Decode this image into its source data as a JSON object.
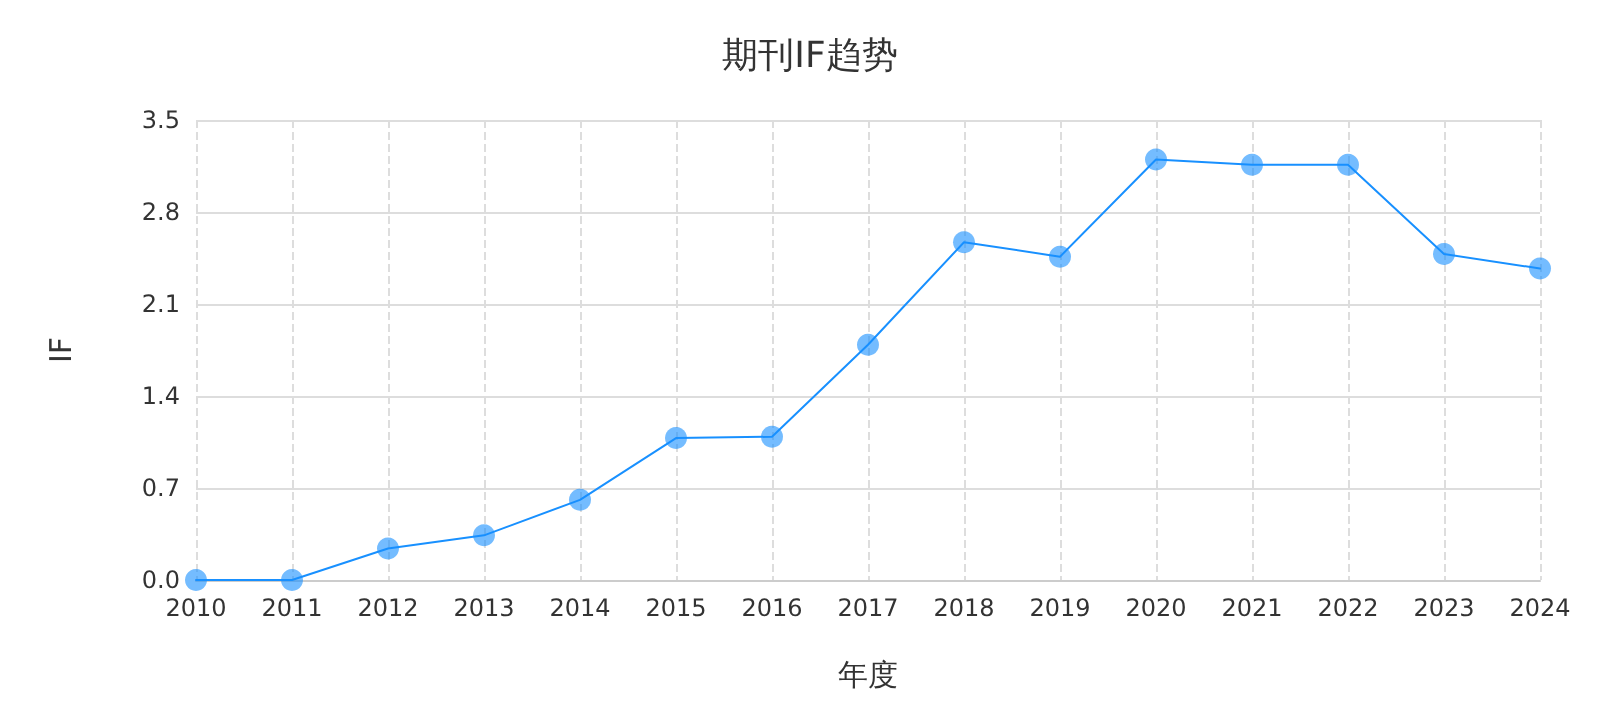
{
  "chart_data": {
    "type": "line",
    "title": "期刊IF趋势",
    "xlabel": "年度",
    "ylabel": "IF",
    "categories": [
      "2010",
      "2011",
      "2012",
      "2013",
      "2014",
      "2015",
      "2016",
      "2017",
      "2018",
      "2019",
      "2020",
      "2021",
      "2022",
      "2023",
      "2024"
    ],
    "series": [
      {
        "color": "#1890ff",
        "values": [
          0,
          0,
          0.24,
          0.34,
          0.61,
          1.08,
          1.09,
          1.79,
          2.57,
          2.46,
          3.2,
          3.16,
          3.16,
          2.48,
          2.37
        ]
      }
    ],
    "ylim": [
      0,
      3.5
    ],
    "yticks": [
      {
        "value": 0,
        "label": "0.0"
      },
      0.7,
      1.4,
      2.1,
      2.8,
      3.5
    ],
    "grid": true,
    "marker": "circle",
    "line_style": "solid"
  }
}
